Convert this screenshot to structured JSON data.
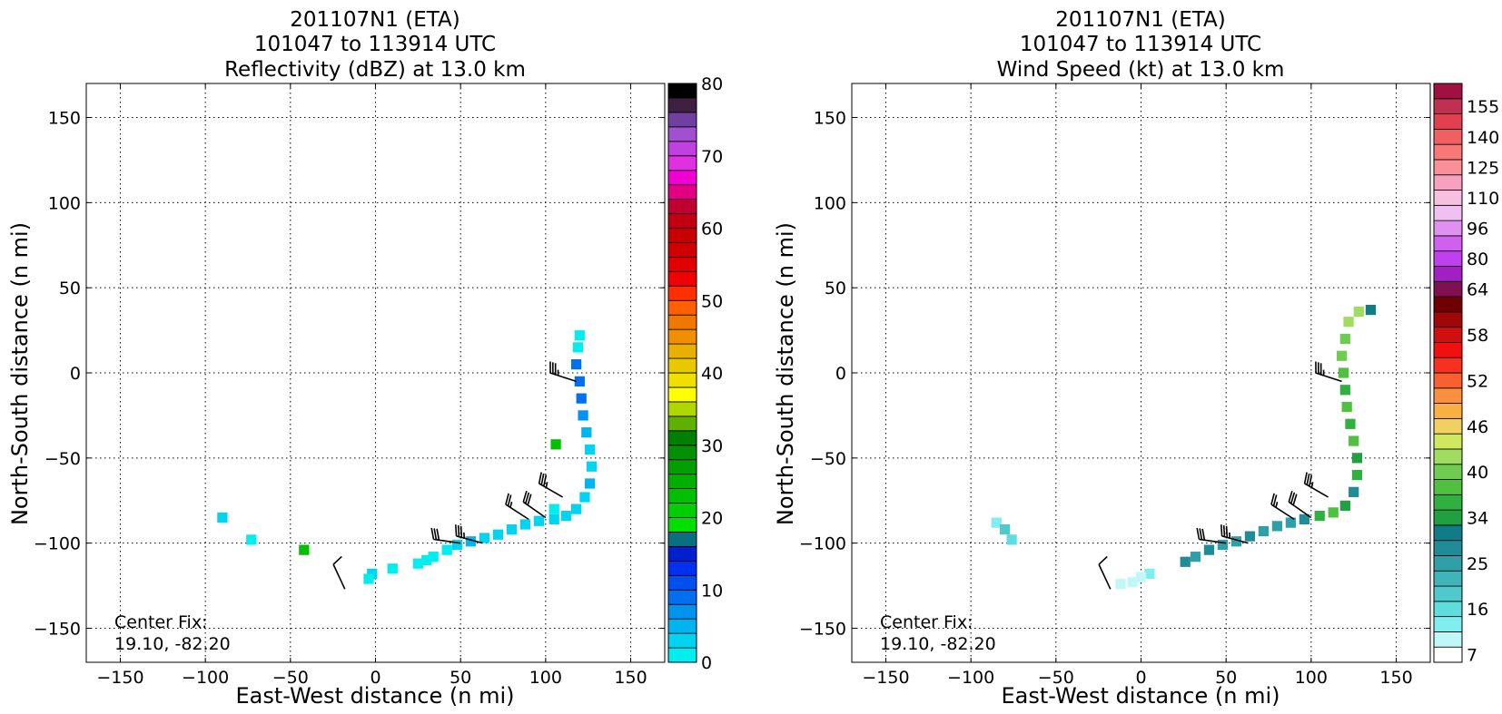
{
  "chart_data": [
    {
      "type": "heatmap",
      "title_lines": [
        "201107N1 (ETA)",
        "101047 to 113914 UTC",
        "Reflectivity (dBZ) at 13.0 km"
      ],
      "xlabel": "East-West distance (n mi)",
      "ylabel": "North-South distance (n mi)",
      "xlim": [
        -170,
        170
      ],
      "ylim": [
        -170,
        170
      ],
      "xticks": [
        -150,
        -100,
        -50,
        0,
        50,
        100,
        150
      ],
      "yticks": [
        -150,
        -100,
        -50,
        0,
        50,
        100,
        150
      ],
      "xtick_labels": [
        "−150",
        "−100",
        "−50",
        "0",
        "50",
        "100",
        "150"
      ],
      "ytick_labels": [
        "−150",
        "−100",
        "−50",
        "0",
        "50",
        "100",
        "150"
      ],
      "grid": true,
      "annotation_lines": [
        "Center Fix:",
        "19.10, -82.20"
      ],
      "colorbar": {
        "min": 0,
        "max": 80,
        "ticks": [
          0,
          10,
          20,
          30,
          40,
          50,
          60,
          70,
          80
        ],
        "tick_labels": [
          "0",
          "10",
          "20",
          "30",
          "40",
          "50",
          "60",
          "70",
          "80"
        ],
        "colors": [
          "#00eeee",
          "#00d4f0",
          "#00b4f0",
          "#0094f0",
          "#0070f0",
          "#0050f0",
          "#0030f0",
          "#0020d0",
          "#0a7080",
          "#00e000",
          "#00d000",
          "#00c000",
          "#00b000",
          "#00a000",
          "#009000",
          "#008000",
          "#60b000",
          "#b0d800",
          "#ffff00",
          "#f0e000",
          "#e8c800",
          "#e8b000",
          "#f09000",
          "#f07800",
          "#ff6000",
          "#ff3000",
          "#f00000",
          "#e00000",
          "#d00000",
          "#c80000",
          "#c00010",
          "#c00030",
          "#e00080",
          "#f000d0",
          "#e030e0",
          "#c040e0",
          "#a050d0",
          "#7040a0",
          "#402040",
          "#000000"
        ]
      },
      "field_cells": [
        {
          "x": 118,
          "y": 5,
          "v": 9
        },
        {
          "x": 120,
          "y": -5,
          "v": 9
        },
        {
          "x": 121,
          "y": -15,
          "v": 8
        },
        {
          "x": 122,
          "y": -25,
          "v": 6
        },
        {
          "x": 124,
          "y": -35,
          "v": 4
        },
        {
          "x": 126,
          "y": -45,
          "v": 3
        },
        {
          "x": 127,
          "y": -55,
          "v": 3
        },
        {
          "x": 126,
          "y": -65,
          "v": 4
        },
        {
          "x": 123,
          "y": -73,
          "v": 3
        },
        {
          "x": 118,
          "y": -80,
          "v": 3
        },
        {
          "x": 112,
          "y": -84,
          "v": 2
        },
        {
          "x": 105,
          "y": -86,
          "v": 2
        },
        {
          "x": 96,
          "y": -87,
          "v": 3
        },
        {
          "x": 88,
          "y": -89,
          "v": 2
        },
        {
          "x": 80,
          "y": -92,
          "v": 2
        },
        {
          "x": 72,
          "y": -95,
          "v": 3
        },
        {
          "x": 64,
          "y": -97,
          "v": 2
        },
        {
          "x": 56,
          "y": -99,
          "v": 4
        },
        {
          "x": 48,
          "y": -101,
          "v": 2
        },
        {
          "x": 42,
          "y": -104,
          "v": 1
        },
        {
          "x": 34,
          "y": -108,
          "v": 1
        },
        {
          "x": 25,
          "y": -112,
          "v": 1
        },
        {
          "x": -2,
          "y": -118,
          "v": 2
        },
        {
          "x": -4,
          "y": -121,
          "v": 1
        },
        {
          "x": 119,
          "y": 15,
          "v": 1
        },
        {
          "x": 120,
          "y": 22,
          "v": 0
        },
        {
          "x": -73,
          "y": -98,
          "v": 1
        },
        {
          "x": -90,
          "y": -85,
          "v": 2
        },
        {
          "x": 10,
          "y": -115,
          "v": 1
        },
        {
          "x": 105,
          "y": -80,
          "v": 1
        },
        {
          "x": 30,
          "y": -110,
          "v": 0
        },
        {
          "x": -42,
          "y": -104,
          "v": 22
        },
        {
          "x": 106,
          "y": -42,
          "v": 22
        }
      ],
      "wind_barbs": [
        {
          "x": 118,
          "y": -5,
          "dir_deg": 288,
          "speed_kt": 35
        },
        {
          "x": 110,
          "y": -73,
          "dir_deg": 300,
          "speed_kt": 35
        },
        {
          "x": 100,
          "y": -85,
          "dir_deg": 305,
          "speed_kt": 30
        },
        {
          "x": 90,
          "y": -86,
          "dir_deg": 303,
          "speed_kt": 25
        },
        {
          "x": 63,
          "y": -100,
          "dir_deg": 285,
          "speed_kt": 35
        },
        {
          "x": 50,
          "y": -100,
          "dir_deg": 278,
          "speed_kt": 30
        },
        {
          "x": -18,
          "y": -127,
          "dir_deg": 335,
          "speed_kt": 10
        }
      ]
    },
    {
      "type": "heatmap",
      "title_lines": [
        "201107N1 (ETA)",
        "101047 to 113914 UTC",
        "Wind Speed (kt) at 13.0 km"
      ],
      "xlabel": "East-West distance (n mi)",
      "ylabel": "North-South distance (n mi)",
      "xlim": [
        -170,
        170
      ],
      "ylim": [
        -170,
        170
      ],
      "xticks": [
        -150,
        -100,
        -50,
        0,
        50,
        100,
        150
      ],
      "yticks": [
        -150,
        -100,
        -50,
        0,
        50,
        100,
        150
      ],
      "xtick_labels": [
        "−150",
        "−100",
        "−50",
        "0",
        "50",
        "100",
        "150"
      ],
      "ytick_labels": [
        "−150",
        "−100",
        "−50",
        "0",
        "50",
        "100",
        "150"
      ],
      "grid": true,
      "annotation_lines": [
        "Center Fix:",
        "19.10, -82.20"
      ],
      "colorbar": {
        "levels": [
          7,
          10,
          13,
          16,
          19,
          22,
          25,
          28,
          31,
          34,
          36,
          38,
          40,
          42,
          44,
          46,
          48,
          50,
          52,
          54,
          56,
          58,
          60,
          62,
          64,
          72,
          80,
          88,
          96,
          103,
          110,
          117,
          125,
          132,
          140,
          147,
          155,
          160
        ],
        "tick_labels": [
          "7",
          "16",
          "25",
          "34",
          "40",
          "46",
          "52",
          "58",
          "64",
          "80",
          "96",
          "110",
          "125",
          "140",
          "155"
        ],
        "tick_levels": [
          7,
          16,
          25,
          34,
          40,
          46,
          52,
          58,
          64,
          80,
          96,
          110,
          125,
          140,
          155
        ],
        "colors": [
          "#ffffff",
          "#c0f8f8",
          "#80eeee",
          "#60dcdc",
          "#50c8cc",
          "#40b4b8",
          "#30a0a8",
          "#208c98",
          "#107c88",
          "#20a040",
          "#30b040",
          "#50c040",
          "#70cc50",
          "#a0dc60",
          "#d0e860",
          "#f0d060",
          "#f8b040",
          "#f89040",
          "#f86030",
          "#f83020",
          "#f01010",
          "#d01010",
          "#a00808",
          "#700000",
          "#801050",
          "#a020c0",
          "#c040f0",
          "#d060f0",
          "#e090f0",
          "#f0c0f0",
          "#f8c0e0",
          "#f8a0c0",
          "#f89098",
          "#f87878",
          "#f06060",
          "#e04050",
          "#c03050",
          "#a01040"
        ]
      },
      "field_cells": [
        {
          "x": 135,
          "y": 37,
          "v": 31
        },
        {
          "x": 128,
          "y": 36,
          "v": 42
        },
        {
          "x": 122,
          "y": 30,
          "v": 42
        },
        {
          "x": 120,
          "y": 20,
          "v": 40
        },
        {
          "x": 118,
          "y": 10,
          "v": 40
        },
        {
          "x": 119,
          "y": 0,
          "v": 38
        },
        {
          "x": 120,
          "y": -10,
          "v": 36
        },
        {
          "x": 121,
          "y": -20,
          "v": 38
        },
        {
          "x": 123,
          "y": -30,
          "v": 36
        },
        {
          "x": 125,
          "y": -40,
          "v": 38
        },
        {
          "x": 127,
          "y": -50,
          "v": 34
        },
        {
          "x": 127,
          "y": -60,
          "v": 36
        },
        {
          "x": 125,
          "y": -70,
          "v": 28
        },
        {
          "x": 120,
          "y": -78,
          "v": 34
        },
        {
          "x": 113,
          "y": -82,
          "v": 38
        },
        {
          "x": 105,
          "y": -84,
          "v": 36
        },
        {
          "x": 96,
          "y": -86,
          "v": 28
        },
        {
          "x": 88,
          "y": -88,
          "v": 25
        },
        {
          "x": 80,
          "y": -90,
          "v": 25
        },
        {
          "x": 72,
          "y": -93,
          "v": 25
        },
        {
          "x": 64,
          "y": -96,
          "v": 28
        },
        {
          "x": 56,
          "y": -99,
          "v": 25
        },
        {
          "x": 48,
          "y": -101,
          "v": 25
        },
        {
          "x": 40,
          "y": -104,
          "v": 28
        },
        {
          "x": 32,
          "y": -108,
          "v": 25
        },
        {
          "x": 26,
          "y": -111,
          "v": 28
        },
        {
          "x": 5,
          "y": -118,
          "v": 13
        },
        {
          "x": 0,
          "y": -120,
          "v": 10
        },
        {
          "x": -5,
          "y": -123,
          "v": 10
        },
        {
          "x": -12,
          "y": -124,
          "v": 10
        },
        {
          "x": -85,
          "y": -88,
          "v": 13
        },
        {
          "x": -80,
          "y": -92,
          "v": 19
        },
        {
          "x": -76,
          "y": -98,
          "v": 16
        }
      ],
      "wind_barbs": [
        {
          "x": 118,
          "y": -5,
          "dir_deg": 288,
          "speed_kt": 35
        },
        {
          "x": 110,
          "y": -73,
          "dir_deg": 300,
          "speed_kt": 35
        },
        {
          "x": 100,
          "y": -85,
          "dir_deg": 305,
          "speed_kt": 30
        },
        {
          "x": 90,
          "y": -86,
          "dir_deg": 303,
          "speed_kt": 25
        },
        {
          "x": 63,
          "y": -100,
          "dir_deg": 285,
          "speed_kt": 35
        },
        {
          "x": 50,
          "y": -100,
          "dir_deg": 278,
          "speed_kt": 30
        },
        {
          "x": -18,
          "y": -127,
          "dir_deg": 335,
          "speed_kt": 10
        }
      ]
    }
  ]
}
